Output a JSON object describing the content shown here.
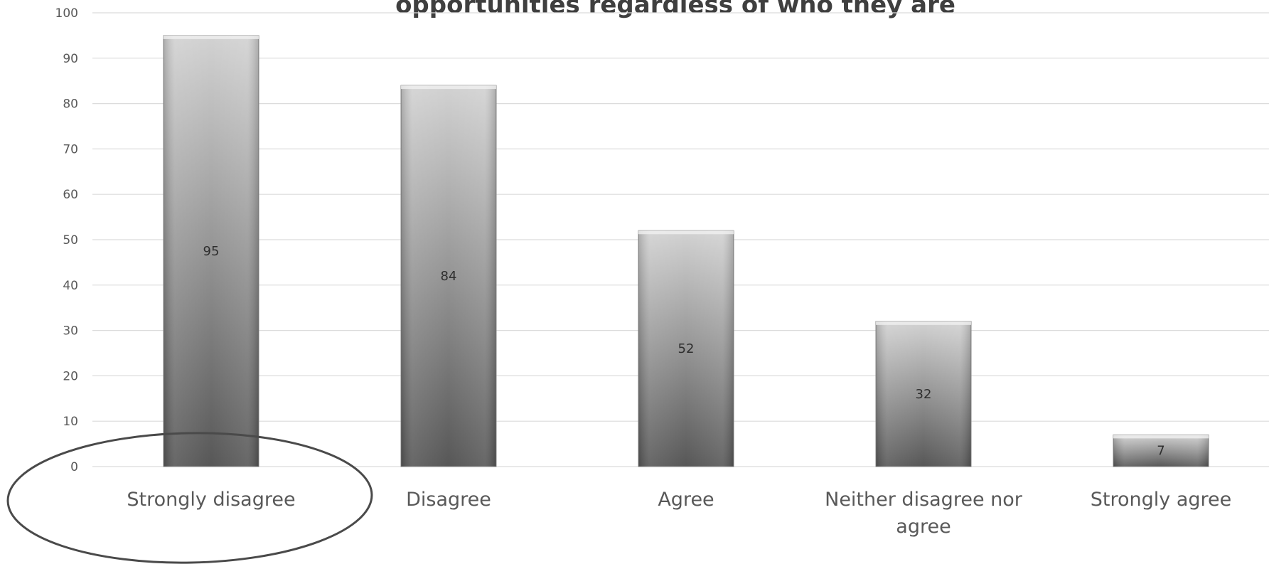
{
  "chart_data": {
    "type": "bar",
    "title": "opportunities regardless of who they are",
    "categories": [
      "Strongly disagree",
      "Disagree",
      "Agree",
      "Neither disagree nor agree",
      "Strongly agree"
    ],
    "category_label_lines": [
      [
        "Strongly disagree"
      ],
      [
        "Disagree"
      ],
      [
        "Agree"
      ],
      [
        "Neither disagree nor",
        "agree"
      ],
      [
        "Strongly agree"
      ]
    ],
    "values": [
      95,
      84,
      52,
      32,
      7
    ],
    "data_labels": [
      "95",
      "84",
      "52",
      "32",
      "7"
    ],
    "ylim": [
      0,
      100
    ],
    "yticks": [
      0,
      10,
      20,
      30,
      40,
      50,
      60,
      70,
      80,
      90,
      100
    ],
    "ytick_labels": [
      "0",
      "10",
      "20",
      "30",
      "40",
      "50",
      "60",
      "70",
      "80",
      "90",
      "100"
    ],
    "grid": true,
    "legend": "none",
    "annotation": "ellipse around Strongly disagree",
    "colors": {
      "bar_top": "#d2d2d2",
      "bar_bottom": "#575757",
      "grid": "#dcdcdc",
      "text": "#595959",
      "title": "#3f3f3f",
      "ellipse": "#4a4a4a"
    }
  }
}
